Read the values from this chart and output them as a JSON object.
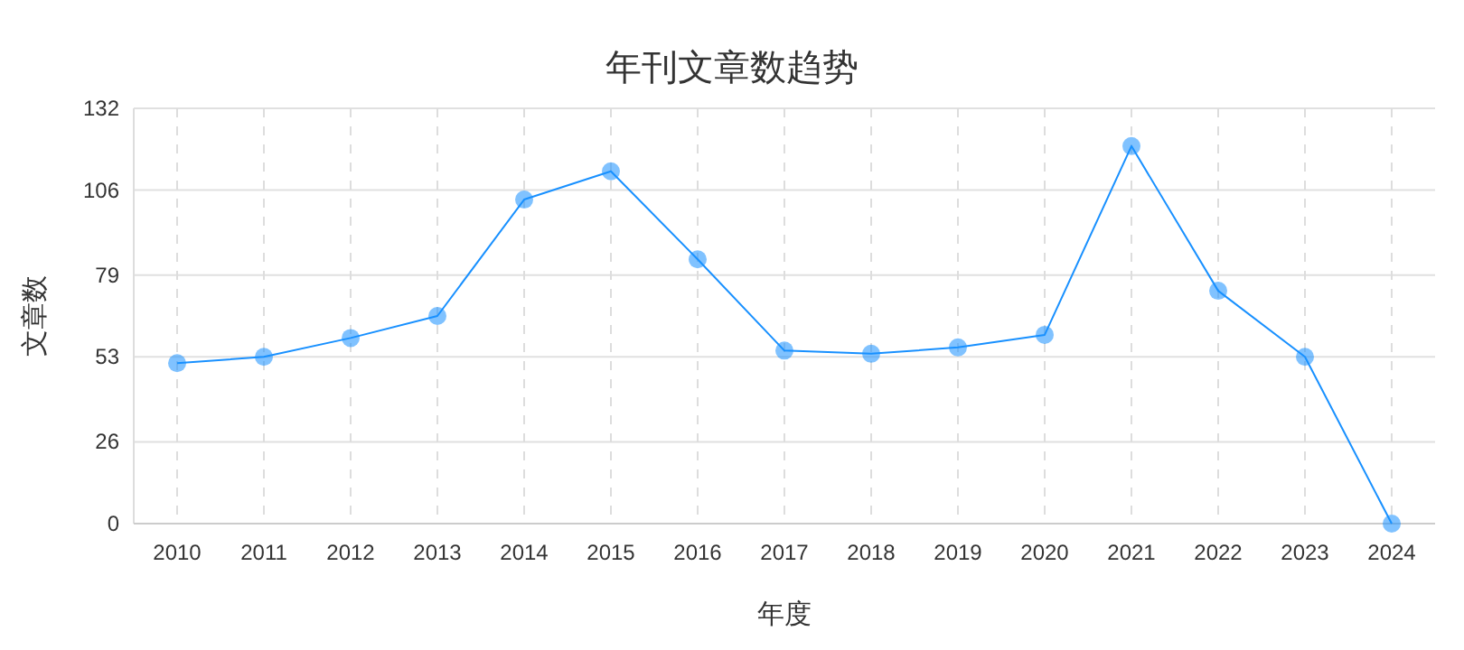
{
  "chart_data": {
    "type": "line",
    "title": "年刊文章数趋势",
    "xlabel": "年度",
    "ylabel": "文章数",
    "categories": [
      "2010",
      "2011",
      "2012",
      "2013",
      "2014",
      "2015",
      "2016",
      "2017",
      "2018",
      "2019",
      "2020",
      "2021",
      "2022",
      "2023",
      "2024"
    ],
    "series": [
      {
        "color": "#1890ff",
        "values": [
          51,
          53,
          59,
          66,
          103,
          112,
          84,
          55,
          54,
          56,
          60,
          120,
          74,
          53,
          0
        ]
      }
    ],
    "marker": "circle",
    "line_style": "solid",
    "grid": true,
    "ylim": [
      0,
      132
    ],
    "yticks": [
      0,
      26,
      53,
      79,
      106,
      132
    ]
  }
}
